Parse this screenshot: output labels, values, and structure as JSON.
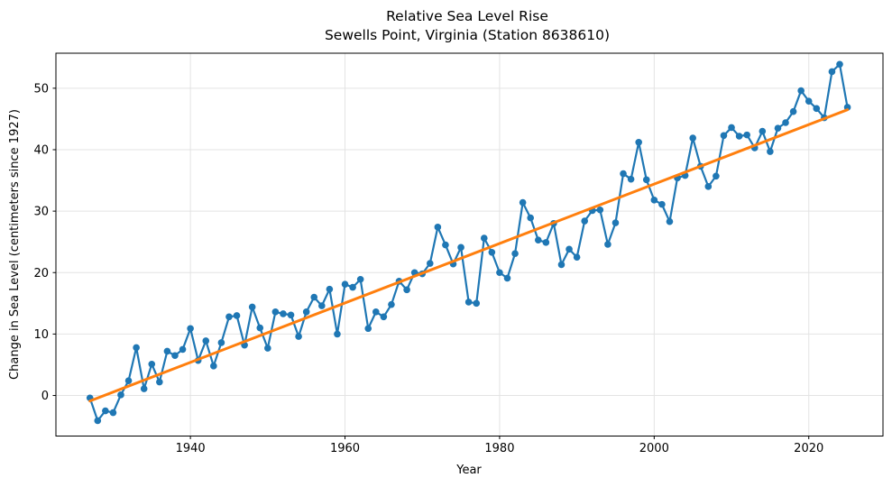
{
  "chart_data": {
    "type": "line",
    "title": "Relative Sea Level Rise",
    "subtitle": "Sewells Point, Virginia (Station 8638610)",
    "xlabel": "Year",
    "ylabel": "Change in Sea Level (centimeters since 1927)",
    "grid": true,
    "legend_position": "none",
    "xlim": [
      1922.6,
      2029.6
    ],
    "ylim": [
      -6.6,
      55.7
    ],
    "xticks": [
      1940,
      1960,
      1980,
      2000,
      2020
    ],
    "yticks": [
      0,
      10,
      20,
      30,
      40,
      50
    ],
    "colors": {
      "observed_series": "#1f77b4",
      "trend_line": "#ff7f0e",
      "grid": "#e3e3e3",
      "spine": "#000000"
    },
    "series": [
      {
        "name": "annual-mean-sea-level",
        "style": "line-with-markers",
        "color": "#1f77b4",
        "x": [
          1927,
          1928,
          1929,
          1930,
          1931,
          1932,
          1933,
          1934,
          1935,
          1936,
          1937,
          1938,
          1939,
          1940,
          1941,
          1942,
          1943,
          1944,
          1945,
          1946,
          1947,
          1948,
          1949,
          1950,
          1951,
          1952,
          1953,
          1954,
          1955,
          1956,
          1957,
          1958,
          1959,
          1960,
          1961,
          1962,
          1963,
          1964,
          1965,
          1966,
          1967,
          1968,
          1969,
          1970,
          1971,
          1972,
          1973,
          1974,
          1975,
          1976,
          1977,
          1978,
          1979,
          1980,
          1981,
          1982,
          1983,
          1984,
          1985,
          1986,
          1987,
          1988,
          1989,
          1990,
          1991,
          1992,
          1993,
          1994,
          1995,
          1996,
          1997,
          1998,
          1999,
          2000,
          2001,
          2002,
          2003,
          2004,
          2005,
          2006,
          2007,
          2008,
          2009,
          2010,
          2011,
          2012,
          2013,
          2014,
          2015,
          2016,
          2017,
          2018,
          2019,
          2020,
          2021,
          2022,
          2023,
          2024,
          2025
        ],
        "values": [
          -0.4,
          -4.1,
          -2.5,
          -2.8,
          0.1,
          2.4,
          7.8,
          1.1,
          5.1,
          2.2,
          7.2,
          6.5,
          7.5,
          10.9,
          5.7,
          8.9,
          4.8,
          8.6,
          12.8,
          13.0,
          8.2,
          14.4,
          11.0,
          7.7,
          13.6,
          13.3,
          13.1,
          9.6,
          13.6,
          16.0,
          14.6,
          17.3,
          10.0,
          18.1,
          17.6,
          18.9,
          10.9,
          13.6,
          12.8,
          14.8,
          18.6,
          17.2,
          20.0,
          19.8,
          21.5,
          27.4,
          24.5,
          21.4,
          24.1,
          15.2,
          15.0,
          25.6,
          23.3,
          20.0,
          19.1,
          23.1,
          31.4,
          28.9,
          25.3,
          24.9,
          28.0,
          21.3,
          23.8,
          22.5,
          28.4,
          30.1,
          30.2,
          24.6,
          28.1,
          36.1,
          35.2,
          41.2,
          35.1,
          31.8,
          31.1,
          28.3,
          35.4,
          35.8,
          41.9,
          37.3,
          34.0,
          35.7,
          42.3,
          43.6,
          42.2,
          42.4,
          40.3,
          43.0,
          39.7,
          43.5,
          44.4,
          46.2,
          49.6,
          47.9,
          46.7,
          45.2,
          52.7,
          53.9,
          46.9
        ]
      },
      {
        "name": "linear-trend",
        "style": "line",
        "color": "#ff7f0e",
        "x": [
          1927,
          2025
        ],
        "values": [
          -0.9,
          46.5
        ]
      }
    ]
  }
}
